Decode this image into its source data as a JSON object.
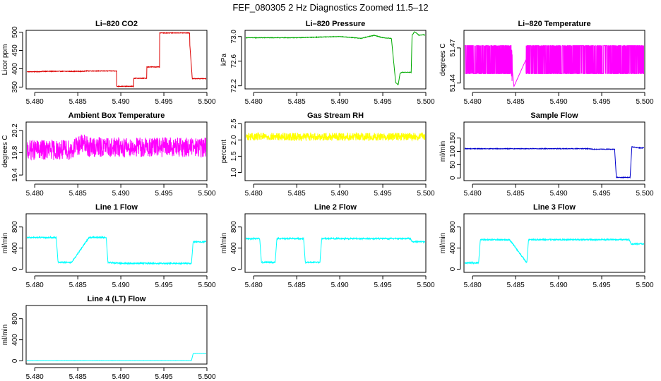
{
  "figure": {
    "title": "FEF_080305  2 Hz Diagnostics Zoomed 11.5–12"
  },
  "chart_data": [
    {
      "type": "line",
      "title": "Li–820 CO2",
      "ylabel": "Licor ppm",
      "color": "#dd0000",
      "xlim": [
        5.479,
        5.5
      ],
      "ylim": [
        345,
        505
      ],
      "xticks": [
        5.48,
        5.485,
        5.49,
        5.495,
        5.5
      ],
      "xtick_labels": [
        "5.480",
        "5.485",
        "5.490",
        "5.495",
        "5.500"
      ],
      "yticks": [
        350,
        400,
        450,
        500
      ],
      "ytick_labels": [
        "350",
        "400",
        "450",
        "500"
      ],
      "noise": 0.8,
      "series": [
        {
          "x": [
            5.479,
            5.4805,
            5.481,
            5.4855,
            5.486,
            5.4875,
            5.4895,
            5.4895,
            5.4915,
            5.4915,
            5.493,
            5.493,
            5.4945,
            5.4945,
            5.498,
            5.498,
            5.4983,
            5.5
          ],
          "y": [
            392,
            392,
            393,
            393,
            394,
            394,
            394,
            352,
            352,
            374,
            374,
            405,
            405,
            498,
            498,
            470,
            373,
            373
          ]
        }
      ]
    },
    {
      "type": "line",
      "title": "Li–820 Pressure",
      "ylabel": "kPa",
      "color": "#00aa00",
      "xlim": [
        5.479,
        5.5
      ],
      "ylim": [
        72.15,
        73.1
      ],
      "xticks": [
        5.48,
        5.485,
        5.49,
        5.495,
        5.5
      ],
      "xtick_labels": [
        "5.480",
        "5.485",
        "5.490",
        "5.495",
        "5.500"
      ],
      "yticks": [
        72.2,
        72.6,
        73.0
      ],
      "ytick_labels": [
        "72.2",
        "72.6",
        "73.0"
      ],
      "noise": 0.004,
      "series": [
        {
          "x": [
            5.479,
            5.485,
            5.49,
            5.4925,
            5.494,
            5.495,
            5.496,
            5.4965,
            5.4968,
            5.497,
            5.4972,
            5.4983,
            5.4984,
            5.4987,
            5.4992,
            5.4997,
            5.5
          ],
          "y": [
            72.98,
            72.98,
            73.0,
            72.97,
            73.02,
            72.98,
            72.97,
            72.25,
            72.22,
            72.4,
            72.42,
            72.42,
            73.02,
            73.08,
            73.02,
            73.03,
            73.02
          ]
        }
      ]
    },
    {
      "type": "line",
      "title": "Li–820 Temperature",
      "ylabel": "degrees C",
      "color": "#ff00ff",
      "xlim": [
        5.479,
        5.5
      ],
      "ylim": [
        51.435,
        51.485
      ],
      "xticks": [
        5.48,
        5.485,
        5.49,
        5.495,
        5.5
      ],
      "xtick_labels": [
        "5.480",
        "5.485",
        "5.490",
        "5.495",
        "5.500"
      ],
      "yticks": [
        51.44,
        51.47
      ],
      "ytick_labels": [
        "51.44",
        "51.47"
      ],
      "noise": 0,
      "series": [
        {
          "x": [
            5.479,
            5.4845,
            5.4848,
            5.4862,
            5.5
          ],
          "y": [
            51.46,
            51.46,
            51.437,
            51.46,
            51.46
          ]
        }
      ]
    },
    {
      "type": "line",
      "title": "Ambient Box Temperature",
      "ylabel": "degrees C",
      "color": "#ff00ff",
      "xlim": [
        5.479,
        5.5
      ],
      "ylim": [
        19.3,
        20.35
      ],
      "xticks": [
        5.48,
        5.485,
        5.49,
        5.495,
        5.5
      ],
      "xtick_labels": [
        "5.480",
        "5.485",
        "5.490",
        "5.495",
        "5.500"
      ],
      "yticks": [
        19.4,
        19.8,
        20.2
      ],
      "ytick_labels": [
        "19.4",
        "19.8",
        "20.2"
      ],
      "noise": 0.18,
      "series": [
        {
          "x": [
            5.479,
            5.4842,
            5.4855,
            5.4862,
            5.5
          ],
          "y": [
            19.85,
            19.85,
            19.97,
            19.9,
            19.9
          ]
        }
      ]
    },
    {
      "type": "line",
      "title": "Gas Stream RH",
      "ylabel": "percent",
      "color": "#ffff00",
      "xlim": [
        5.479,
        5.5
      ],
      "ylim": [
        0.75,
        2.55
      ],
      "xticks": [
        5.48,
        5.485,
        5.49,
        5.495,
        5.5
      ],
      "xtick_labels": [
        "5.480",
        "5.485",
        "5.490",
        "5.495",
        "5.500"
      ],
      "yticks": [
        1.0,
        1.5,
        2.0,
        2.5
      ],
      "ytick_labels": [
        "1.0",
        "1.5",
        "2.0",
        "2.5"
      ],
      "noise": 0.12,
      "series": [
        {
          "x": [
            5.479,
            5.4843,
            5.4855,
            5.4862,
            5.5
          ],
          "y": [
            2.1,
            2.1,
            2.1,
            2.1,
            2.1
          ]
        }
      ]
    },
    {
      "type": "line",
      "title": "Sample Flow",
      "ylabel": "ml/min",
      "color": "#0000cc",
      "xlim": [
        5.479,
        5.5
      ],
      "ylim": [
        -10,
        210
      ],
      "xticks": [
        5.48,
        5.485,
        5.49,
        5.495,
        5.5
      ],
      "xtick_labels": [
        "5.480",
        "5.485",
        "5.490",
        "5.495",
        "5.500"
      ],
      "yticks": [
        0,
        50,
        100,
        150
      ],
      "ytick_labels": [
        "0",
        "50",
        "100",
        "150"
      ],
      "noise": 1.2,
      "series": [
        {
          "x": [
            5.479,
            5.4935,
            5.494,
            5.4965,
            5.4967,
            5.4983,
            5.4985,
            5.4993,
            5.5
          ],
          "y": [
            110,
            110,
            108,
            108,
            2,
            2,
            117,
            113,
            113
          ]
        }
      ]
    },
    {
      "type": "line",
      "title": "Line 1 Flow",
      "ylabel": "ml/min",
      "color": "#00ffff",
      "xlim": [
        5.479,
        5.5
      ],
      "ylim": [
        -60,
        1050
      ],
      "xticks": [
        5.48,
        5.485,
        5.49,
        5.495,
        5.5
      ],
      "xtick_labels": [
        "5.480",
        "5.485",
        "5.490",
        "5.495",
        "5.500"
      ],
      "yticks": [
        0,
        400,
        800
      ],
      "ytick_labels": [
        "0",
        "400",
        "800"
      ],
      "noise": 12,
      "series": [
        {
          "x": [
            5.479,
            5.4825,
            5.4827,
            5.4843,
            5.4863,
            5.4883,
            5.4885,
            5.49,
            5.4982,
            5.4984,
            5.5
          ],
          "y": [
            600,
            600,
            130,
            130,
            600,
            600,
            130,
            110,
            110,
            520,
            520
          ]
        }
      ]
    },
    {
      "type": "line",
      "title": "Line 2 Flow",
      "ylabel": "ml/min",
      "color": "#00ffff",
      "xlim": [
        5.479,
        5.5
      ],
      "ylim": [
        -60,
        1050
      ],
      "xticks": [
        5.48,
        5.485,
        5.49,
        5.495,
        5.5
      ],
      "xtick_labels": [
        "5.480",
        "5.485",
        "5.490",
        "5.495",
        "5.500"
      ],
      "yticks": [
        0,
        400,
        800
      ],
      "ytick_labels": [
        "0",
        "400",
        "800"
      ],
      "noise": 12,
      "series": [
        {
          "x": [
            5.479,
            5.4807,
            5.4809,
            5.4825,
            5.4827,
            5.4858,
            5.486,
            5.4877,
            5.4879,
            5.4982,
            5.4984,
            5.5
          ],
          "y": [
            580,
            580,
            130,
            130,
            580,
            580,
            130,
            130,
            580,
            580,
            520,
            520
          ]
        }
      ]
    },
    {
      "type": "line",
      "title": "Line 3 Flow",
      "ylabel": "ml/min",
      "color": "#00ffff",
      "xlim": [
        5.479,
        5.5
      ],
      "ylim": [
        -60,
        1050
      ],
      "xticks": [
        5.48,
        5.485,
        5.49,
        5.495,
        5.5
      ],
      "xtick_labels": [
        "5.480",
        "5.485",
        "5.490",
        "5.495",
        "5.500"
      ],
      "yticks": [
        0,
        400,
        800
      ],
      "ytick_labels": [
        "0",
        "400",
        "800"
      ],
      "noise": 12,
      "series": [
        {
          "x": [
            5.479,
            5.4807,
            5.4809,
            5.4843,
            5.4863,
            5.4865,
            5.4982,
            5.4984,
            5.5
          ],
          "y": [
            120,
            120,
            560,
            560,
            120,
            560,
            560,
            480,
            480
          ]
        }
      ]
    },
    {
      "type": "line",
      "title": "Line 4 (LT) Flow",
      "ylabel": "ml/min",
      "color": "#00ffff",
      "xlim": [
        5.479,
        5.5
      ],
      "ylim": [
        -60,
        1050
      ],
      "xticks": [
        5.48,
        5.485,
        5.49,
        5.495,
        5.5
      ],
      "xtick_labels": [
        "5.480",
        "5.485",
        "5.490",
        "5.495",
        "5.500"
      ],
      "yticks": [
        0,
        400,
        800
      ],
      "ytick_labels": [
        "0",
        "400",
        "800"
      ],
      "noise": 2,
      "series": [
        {
          "x": [
            5.479,
            5.4982,
            5.4984,
            5.5
          ],
          "y": [
            5,
            5,
            140,
            140
          ]
        }
      ]
    }
  ]
}
